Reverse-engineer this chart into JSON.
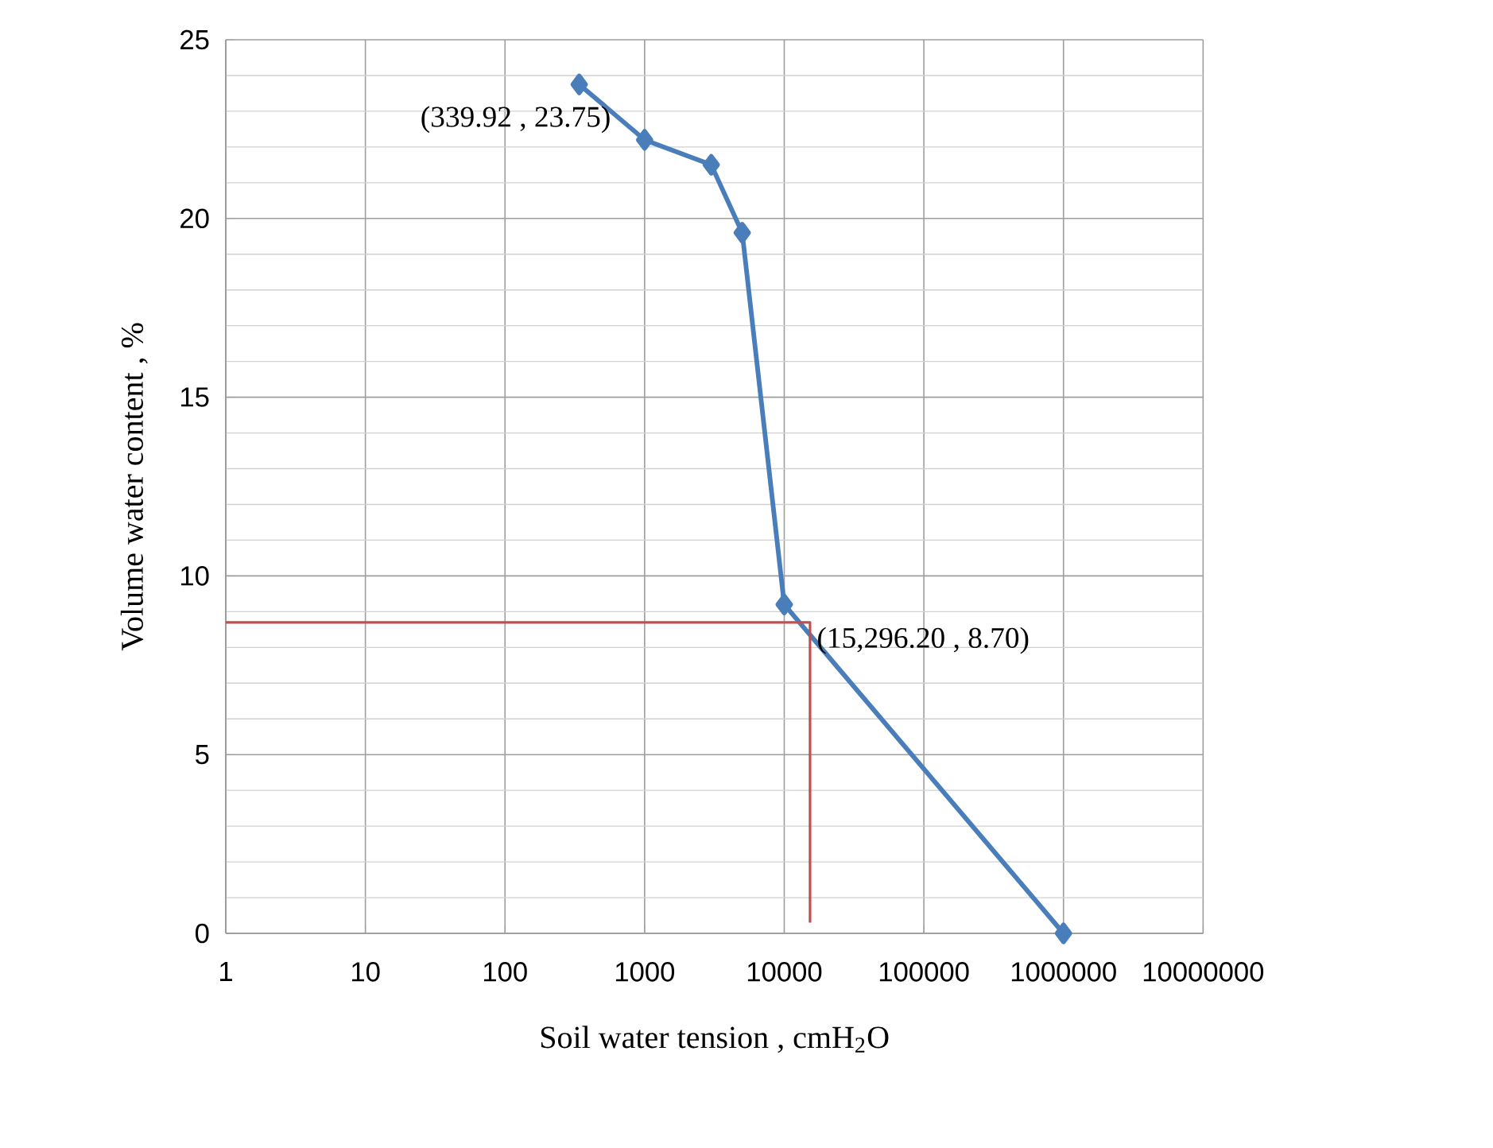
{
  "chart_data": {
    "type": "line",
    "xlabel": "Soil water tension , cmH$_{2}$O",
    "ylabel": "Volume water content , %",
    "log": "x",
    "grid": true,
    "marker": "diamond",
    "line_style": "solid",
    "xlim": [
      1,
      10000000
    ],
    "ylim": [
      0,
      25
    ],
    "xticks": [
      1,
      10,
      100,
      1000,
      10000,
      100000,
      1000000,
      10000000
    ],
    "yticks": [
      0,
      5,
      10,
      15,
      20,
      25
    ],
    "series": [
      {
        "color": "#4a7ebb",
        "x": [
          339.92,
          1000,
          3000,
          5000,
          10000,
          1000000
        ],
        "values": [
          23.75,
          22.2,
          21.5,
          19.6,
          9.2,
          0
        ]
      },
      {
        "color": "#c0504d",
        "marker": "none",
        "x": [
          1,
          15296.2,
          15296.2
        ],
        "values": [
          8.7,
          8.7,
          0.3
        ]
      }
    ],
    "annotations": [
      {
        "text": "(339.92 , 23.75)",
        "x": 339.92,
        "y": 23.75
      },
      {
        "text": "(15,296.20 , 8.70)",
        "x": 15296.2,
        "y": 8.7
      }
    ]
  }
}
